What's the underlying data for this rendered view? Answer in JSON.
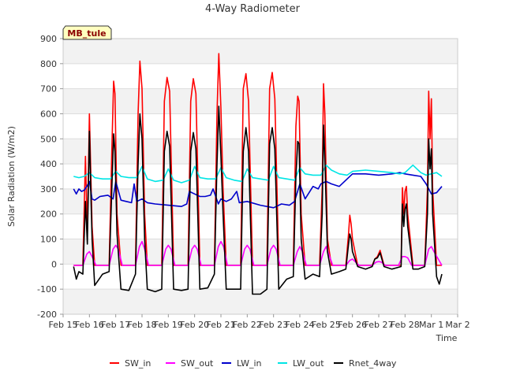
{
  "chart_data": {
    "type": "line",
    "title": "4-Way Radiometer",
    "xlabel": "Time",
    "ylabel": "Solar Radiation (W/m2)",
    "site_label": "MB_tule",
    "xlim": [
      15,
      30
    ],
    "ylim": [
      -200,
      900
    ],
    "yticks": [
      -200,
      -100,
      0,
      100,
      200,
      300,
      400,
      500,
      600,
      700,
      800,
      900
    ],
    "xticks": [
      {
        "x": 15,
        "label": "Feb 15"
      },
      {
        "x": 16,
        "label": "Feb 16"
      },
      {
        "x": 17,
        "label": "Feb 17"
      },
      {
        "x": 18,
        "label": "Feb 18"
      },
      {
        "x": 19,
        "label": "Feb 19"
      },
      {
        "x": 20,
        "label": "Feb 20"
      },
      {
        "x": 21,
        "label": "Feb 21"
      },
      {
        "x": 22,
        "label": "Feb 22"
      },
      {
        "x": 23,
        "label": "Feb 23"
      },
      {
        "x": 24,
        "label": "Feb 24"
      },
      {
        "x": 25,
        "label": "Feb 25"
      },
      {
        "x": 26,
        "label": "Feb 26"
      },
      {
        "x": 27,
        "label": "Feb 27"
      },
      {
        "x": 28,
        "label": "Feb 28"
      },
      {
        "x": 29,
        "label": "Mar 1"
      },
      {
        "x": 30,
        "label": "Mar 2"
      }
    ],
    "series": [
      {
        "name": "SW_in",
        "color": "#ff0000",
        "x": [
          15.4,
          15.75,
          15.85,
          15.92,
          16.0,
          16.1,
          16.2,
          16.75,
          16.85,
          16.92,
          16.97,
          17.05,
          17.2,
          17.75,
          17.85,
          17.92,
          18.0,
          18.1,
          18.2,
          18.75,
          18.85,
          18.95,
          19.05,
          19.2,
          19.75,
          19.85,
          19.95,
          20.05,
          20.2,
          20.75,
          20.85,
          20.92,
          21.0,
          21.08,
          21.2,
          21.75,
          21.85,
          21.95,
          22.05,
          22.2,
          22.75,
          22.85,
          22.95,
          23.05,
          23.2,
          23.75,
          23.85,
          23.92,
          23.97,
          24.05,
          24.2,
          24.75,
          24.85,
          24.9,
          24.95,
          25.05,
          25.2,
          25.75,
          25.85,
          25.9,
          25.95,
          26.0,
          26.2,
          26.75,
          26.85,
          26.95,
          27.05,
          27.2,
          27.85,
          27.9,
          27.95,
          28.0,
          28.05,
          28.1,
          28.3,
          28.75,
          28.85,
          28.9,
          28.95,
          29.0,
          29.05,
          29.2,
          29.4
        ],
        "values": [
          -5,
          -5,
          430,
          120,
          600,
          150,
          -5,
          -5,
          450,
          730,
          680,
          200,
          -5,
          -5,
          600,
          810,
          700,
          200,
          -5,
          -5,
          650,
          745,
          690,
          -5,
          -5,
          650,
          740,
          680,
          -5,
          -5,
          600,
          840,
          620,
          300,
          -5,
          -5,
          700,
          760,
          650,
          -5,
          -5,
          700,
          765,
          660,
          -5,
          -5,
          550,
          670,
          650,
          200,
          -5,
          -5,
          300,
          720,
          600,
          100,
          -5,
          -5,
          120,
          195,
          160,
          100,
          -5,
          -5,
          20,
          30,
          55,
          -5,
          -5,
          305,
          200,
          290,
          310,
          200,
          -5,
          -5,
          300,
          690,
          500,
          660,
          300,
          -5,
          -5
        ]
      },
      {
        "name": "SW_out",
        "color": "#ff00ff",
        "x": [
          15.4,
          15.75,
          15.9,
          16.0,
          16.1,
          16.25,
          16.75,
          16.9,
          17.0,
          17.1,
          17.25,
          17.75,
          17.9,
          18.0,
          18.1,
          18.25,
          18.75,
          18.9,
          19.0,
          19.1,
          19.25,
          19.75,
          19.9,
          20.0,
          20.1,
          20.25,
          20.75,
          20.9,
          21.0,
          21.1,
          21.25,
          21.75,
          21.9,
          22.0,
          22.1,
          22.25,
          22.75,
          22.9,
          23.0,
          23.1,
          23.25,
          23.75,
          23.9,
          24.0,
          24.1,
          24.25,
          24.75,
          24.9,
          25.0,
          25.1,
          25.25,
          25.75,
          25.9,
          26.0,
          26.1,
          26.25,
          26.75,
          26.9,
          27.0,
          27.1,
          27.25,
          27.75,
          27.9,
          28.0,
          28.1,
          28.25,
          28.75,
          28.9,
          29.0,
          29.1,
          29.4
        ],
        "values": [
          -5,
          -5,
          40,
          50,
          30,
          -5,
          -5,
          60,
          75,
          60,
          -5,
          -5,
          70,
          90,
          60,
          -5,
          -5,
          60,
          75,
          60,
          -5,
          -5,
          60,
          75,
          60,
          -5,
          -5,
          70,
          90,
          70,
          -5,
          -5,
          60,
          75,
          60,
          -5,
          -5,
          60,
          75,
          60,
          -5,
          -5,
          50,
          70,
          50,
          -5,
          -5,
          50,
          70,
          40,
          -5,
          -5,
          15,
          20,
          10,
          -5,
          -5,
          8,
          10,
          8,
          -5,
          -5,
          30,
          30,
          25,
          -5,
          -5,
          60,
          70,
          50,
          -5
        ]
      },
      {
        "name": "LW_in",
        "color": "#0000cc",
        "x": [
          15.4,
          15.5,
          15.6,
          15.7,
          15.8,
          15.9,
          16.0,
          16.1,
          16.2,
          16.4,
          16.7,
          16.9,
          17.0,
          17.2,
          17.4,
          17.6,
          17.7,
          17.8,
          17.9,
          18.0,
          18.2,
          18.5,
          19.0,
          19.5,
          19.7,
          19.8,
          20.0,
          20.2,
          20.4,
          20.6,
          20.7,
          20.9,
          21.0,
          21.2,
          21.4,
          21.6,
          21.7,
          22.0,
          22.5,
          23.0,
          23.3,
          23.6,
          23.8,
          24.0,
          24.2,
          24.5,
          24.7,
          24.8,
          25.0,
          25.2,
          25.5,
          25.8,
          26.0,
          26.5,
          27.0,
          27.5,
          27.8,
          28.0,
          28.3,
          28.6,
          28.8,
          29.0,
          29.2,
          29.4
        ],
        "values": [
          300,
          280,
          300,
          290,
          295,
          310,
          330,
          260,
          255,
          270,
          275,
          260,
          330,
          255,
          250,
          245,
          320,
          250,
          255,
          260,
          245,
          240,
          235,
          230,
          240,
          290,
          280,
          270,
          270,
          275,
          300,
          240,
          260,
          250,
          260,
          290,
          245,
          250,
          235,
          225,
          240,
          235,
          250,
          320,
          260,
          310,
          300,
          320,
          330,
          320,
          310,
          340,
          360,
          360,
          355,
          360,
          365,
          360,
          355,
          350,
          320,
          280,
          285,
          310
        ]
      },
      {
        "name": "LW_out",
        "color": "#00e5e5",
        "x": [
          15.4,
          15.6,
          15.8,
          16.0,
          16.2,
          16.5,
          16.8,
          17.0,
          17.2,
          17.5,
          17.8,
          18.0,
          18.2,
          18.5,
          18.8,
          19.0,
          19.2,
          19.5,
          19.8,
          20.0,
          20.2,
          20.5,
          20.8,
          21.0,
          21.2,
          21.5,
          21.8,
          22.0,
          22.2,
          22.5,
          22.8,
          23.0,
          23.2,
          23.5,
          23.8,
          24.0,
          24.2,
          24.5,
          24.8,
          25.0,
          25.2,
          25.5,
          25.8,
          26.0,
          26.5,
          27.0,
          27.5,
          27.8,
          28.0,
          28.3,
          28.6,
          28.8,
          29.0,
          29.2,
          29.4
        ],
        "values": [
          350,
          345,
          350,
          365,
          345,
          340,
          340,
          370,
          350,
          345,
          345,
          390,
          340,
          330,
          335,
          380,
          335,
          325,
          335,
          390,
          345,
          340,
          340,
          385,
          345,
          335,
          330,
          380,
          345,
          340,
          335,
          390,
          345,
          340,
          335,
          385,
          360,
          355,
          355,
          395,
          375,
          360,
          355,
          370,
          375,
          370,
          365,
          360,
          365,
          395,
          365,
          355,
          360,
          365,
          350
        ]
      },
      {
        "name": "Rnet_4way",
        "color": "#000000",
        "x": [
          15.4,
          15.5,
          15.6,
          15.75,
          15.85,
          15.92,
          16.0,
          16.05,
          16.1,
          16.2,
          16.5,
          16.75,
          16.85,
          16.92,
          16.97,
          17.05,
          17.2,
          17.5,
          17.75,
          17.85,
          17.92,
          18.0,
          18.1,
          18.2,
          18.5,
          18.75,
          18.85,
          18.95,
          19.05,
          19.2,
          19.5,
          19.75,
          19.85,
          19.95,
          20.05,
          20.2,
          20.5,
          20.75,
          20.85,
          20.92,
          21.0,
          21.08,
          21.2,
          21.5,
          21.75,
          21.85,
          21.95,
          22.05,
          22.2,
          22.5,
          22.75,
          22.85,
          22.95,
          23.05,
          23.2,
          23.5,
          23.75,
          23.85,
          23.92,
          23.97,
          24.05,
          24.2,
          24.5,
          24.75,
          24.85,
          24.9,
          24.95,
          25.05,
          25.2,
          25.5,
          25.75,
          25.85,
          25.9,
          25.95,
          26.0,
          26.2,
          26.5,
          26.75,
          26.85,
          26.95,
          27.05,
          27.2,
          27.5,
          27.85,
          27.9,
          27.95,
          28.0,
          28.05,
          28.1,
          28.3,
          28.5,
          28.75,
          28.85,
          28.9,
          28.95,
          29.0,
          29.05,
          29.2,
          29.3,
          29.4
        ],
        "values": [
          -10,
          -60,
          -30,
          -40,
          250,
          80,
          530,
          300,
          100,
          -85,
          -40,
          -30,
          300,
          520,
          450,
          120,
          -100,
          -105,
          -40,
          400,
          600,
          500,
          100,
          -100,
          -110,
          -100,
          450,
          530,
          470,
          -100,
          -105,
          -100,
          450,
          525,
          460,
          -100,
          -95,
          -40,
          400,
          630,
          430,
          200,
          -100,
          -100,
          -100,
          450,
          545,
          450,
          -120,
          -120,
          -100,
          480,
          545,
          460,
          -100,
          -60,
          -50,
          350,
          490,
          480,
          100,
          -60,
          -40,
          -50,
          200,
          555,
          420,
          50,
          -40,
          -30,
          -20,
          80,
          120,
          100,
          50,
          -10,
          -20,
          -10,
          20,
          25,
          45,
          -10,
          -20,
          -10,
          240,
          150,
          220,
          240,
          150,
          -20,
          -20,
          -10,
          200,
          500,
          380,
          460,
          200,
          -50,
          -80,
          -40
        ]
      }
    ]
  }
}
